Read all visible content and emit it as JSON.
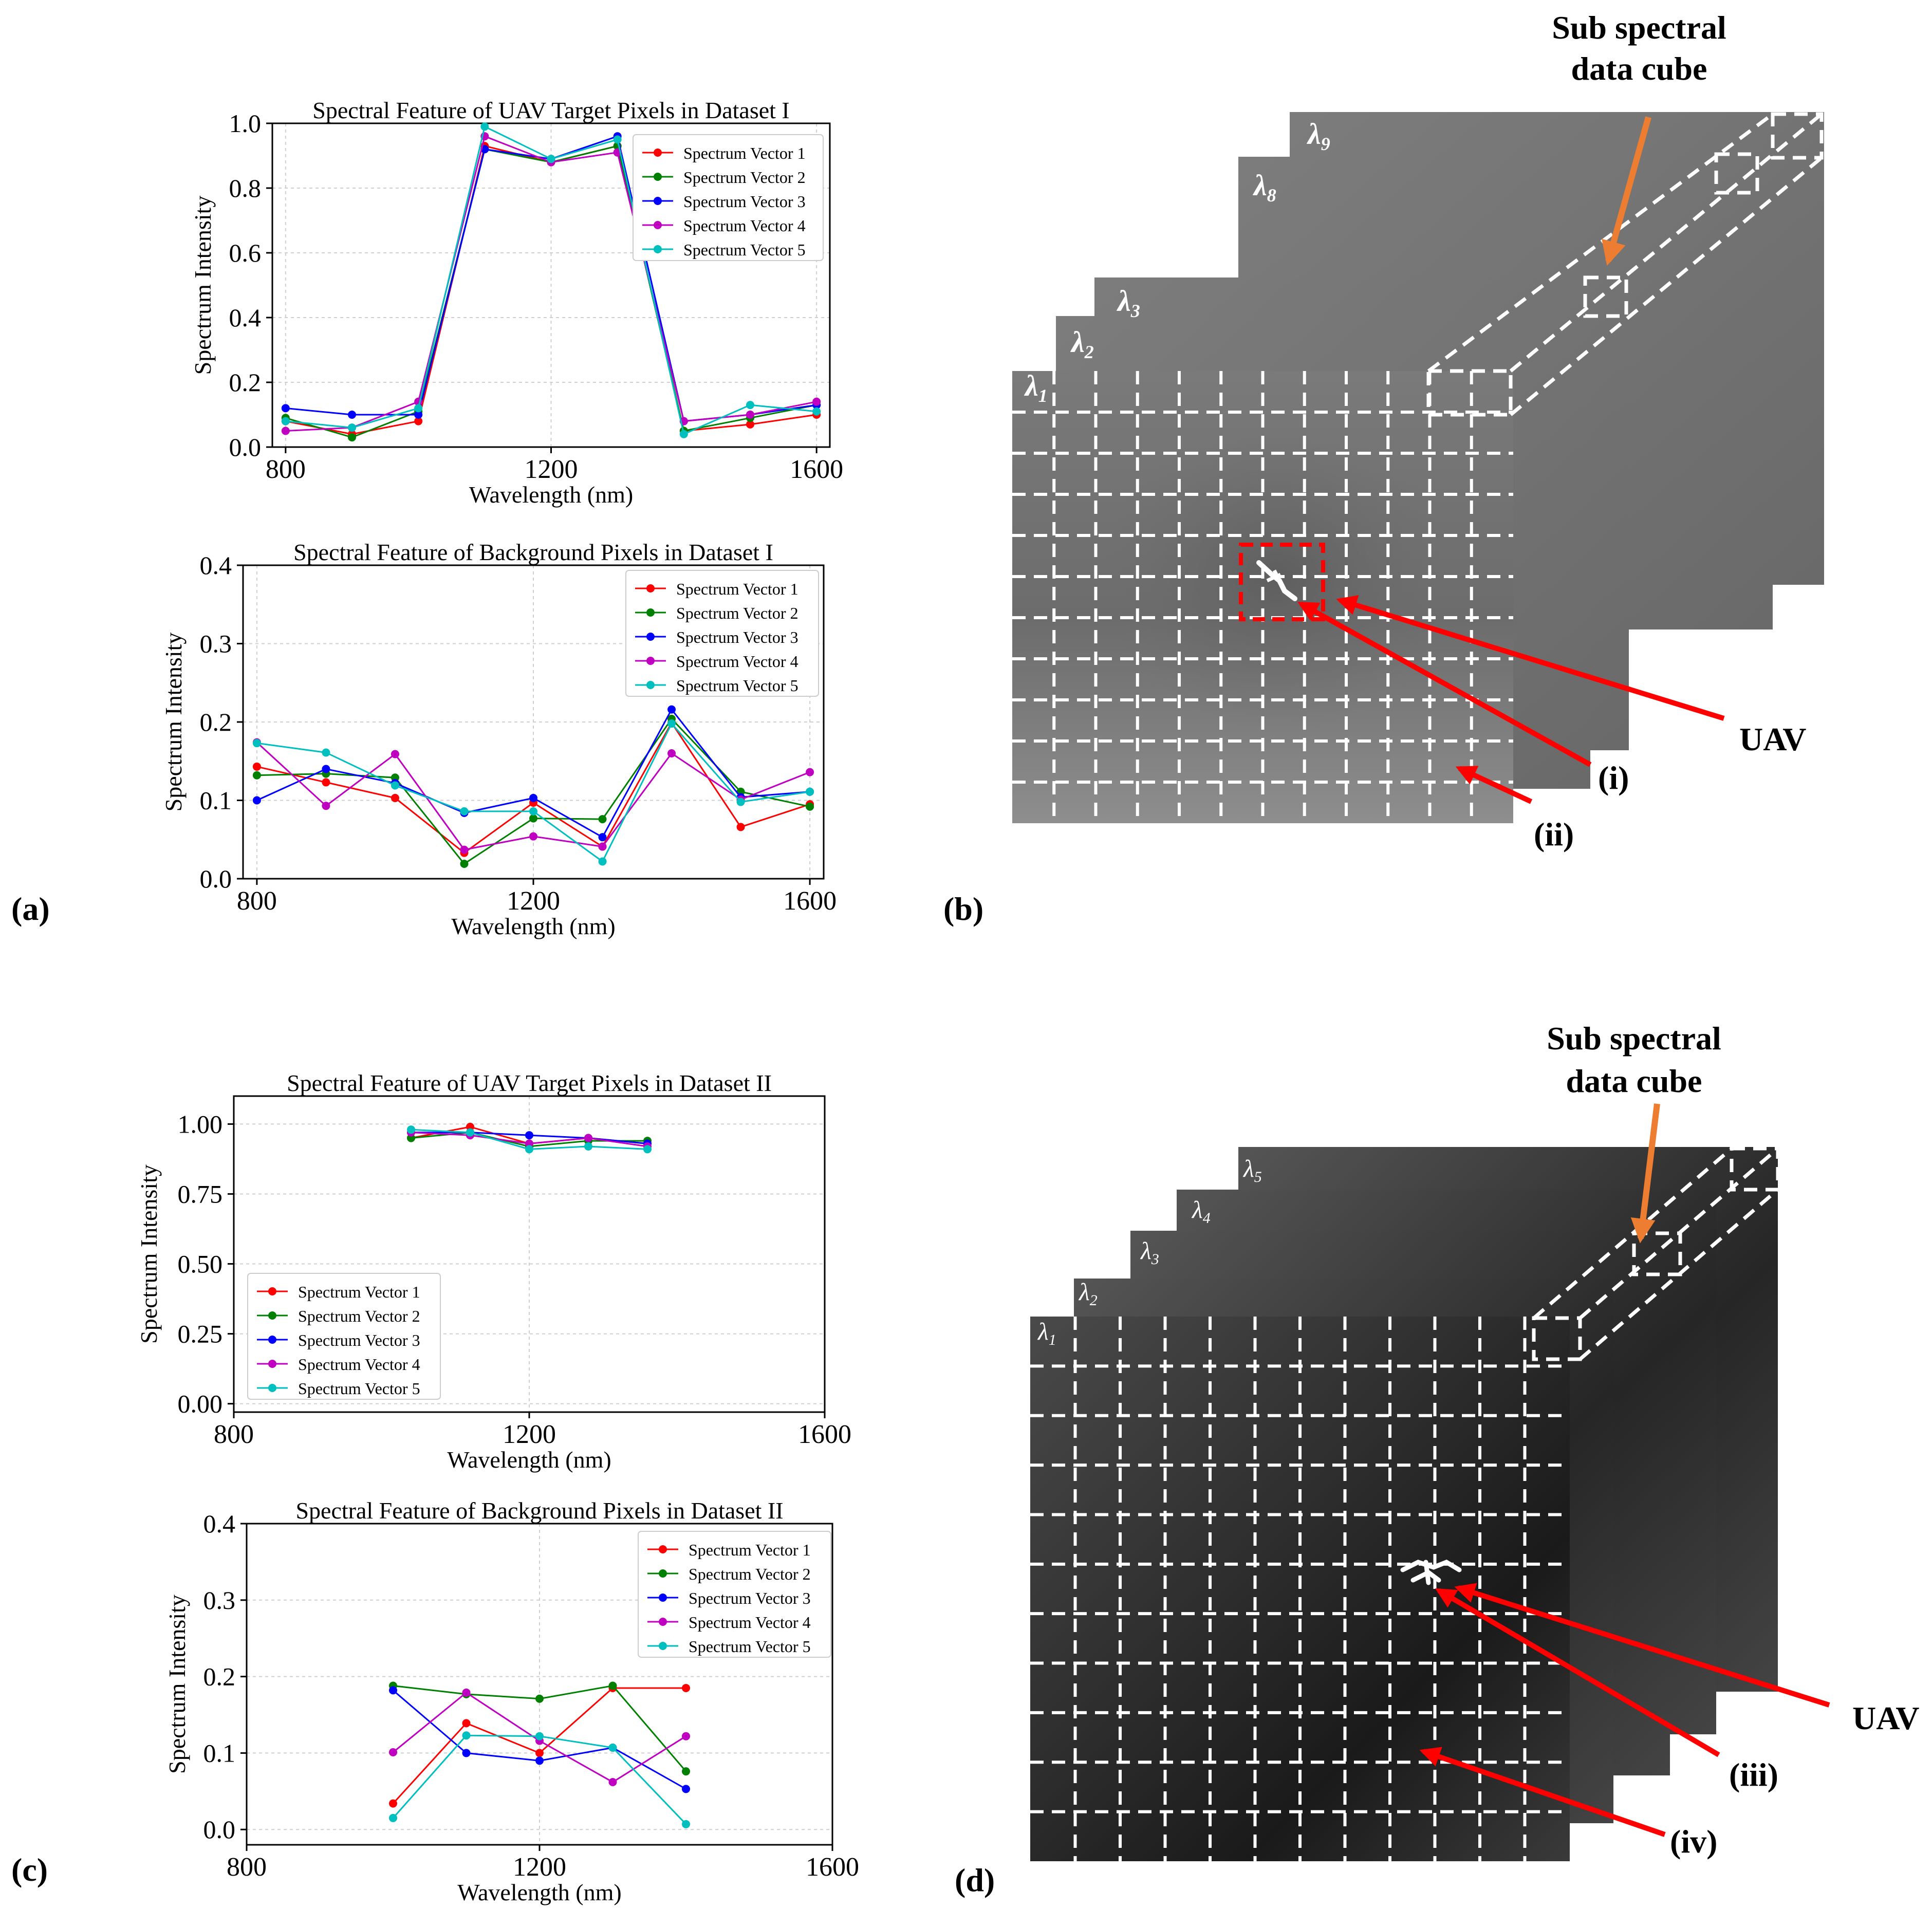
{
  "panel_labels": {
    "a": "(a)",
    "b": "(b)",
    "c": "(c)",
    "d": "(d)"
  },
  "series_colors": [
    "#ff0000",
    "#008000",
    "#0000ff",
    "#c000c0",
    "#00bfbf"
  ],
  "chart_data": [
    {
      "type": "line",
      "title": "Spectral Feature of UAV Target Pixels in Dataset I",
      "xlabel": "Wavelength (nm)",
      "ylabel": "Spectrum Intensity",
      "xlim": [
        780,
        1620
      ],
      "ylim": [
        0,
        1.0
      ],
      "xticks": [
        800,
        1200,
        1600
      ],
      "xtick_labels": [
        "800",
        "1200",
        "1600"
      ],
      "yticks": [
        0,
        0.2,
        0.4,
        0.6,
        0.8,
        1.0
      ],
      "ytick_labels": [
        "0.0",
        "0.2",
        "0.4",
        "0.6",
        "0.8",
        "1.0"
      ],
      "grid": true,
      "legend_position": "upper right",
      "x": [
        800,
        900,
        1000,
        1100,
        1200,
        1300,
        1400,
        1500,
        1600
      ],
      "series": [
        {
          "name": "Spectrum Vector 1",
          "values": [
            0.08,
            0.04,
            0.08,
            0.93,
            0.88,
            0.93,
            0.05,
            0.07,
            0.1
          ]
        },
        {
          "name": "Spectrum Vector 2",
          "values": [
            0.09,
            0.03,
            0.11,
            0.92,
            0.88,
            0.93,
            0.05,
            0.09,
            0.13
          ]
        },
        {
          "name": "Spectrum Vector 3",
          "values": [
            0.12,
            0.1,
            0.1,
            0.92,
            0.89,
            0.96,
            0.08,
            0.1,
            0.13
          ]
        },
        {
          "name": "Spectrum Vector 4",
          "values": [
            0.05,
            0.06,
            0.14,
            0.96,
            0.88,
            0.91,
            0.08,
            0.1,
            0.14
          ]
        },
        {
          "name": "Spectrum Vector 5",
          "values": [
            0.08,
            0.06,
            0.12,
            0.99,
            0.89,
            0.95,
            0.04,
            0.13,
            0.11
          ]
        }
      ]
    },
    {
      "type": "line",
      "title": "Spectral Feature of Background Pixels in Dataset I",
      "xlabel": "Wavelength (nm)",
      "ylabel": "Spectrum Intensity",
      "xlim": [
        780,
        1620
      ],
      "ylim": [
        0,
        0.4
      ],
      "xticks": [
        800,
        1200,
        1600
      ],
      "xtick_labels": [
        "800",
        "1200",
        "1600"
      ],
      "yticks": [
        0,
        0.1,
        0.2,
        0.3,
        0.4
      ],
      "ytick_labels": [
        "0.0",
        "0.1",
        "0.2",
        "0.3",
        "0.4"
      ],
      "grid": true,
      "legend_position": "upper right",
      "x": [
        800,
        900,
        1000,
        1100,
        1200,
        1300,
        1400,
        1500,
        1600
      ],
      "series": [
        {
          "name": "Spectrum Vector 1",
          "values": [
            0.143,
            0.123,
            0.103,
            0.033,
            0.097,
            0.041,
            0.199,
            0.066,
            0.095
          ]
        },
        {
          "name": "Spectrum Vector 2",
          "values": [
            0.132,
            0.134,
            0.129,
            0.019,
            0.077,
            0.076,
            0.204,
            0.111,
            0.092
          ]
        },
        {
          "name": "Spectrum Vector 3",
          "values": [
            0.1,
            0.14,
            0.122,
            0.084,
            0.103,
            0.053,
            0.216,
            0.104,
            0.111
          ]
        },
        {
          "name": "Spectrum Vector 4",
          "values": [
            0.174,
            0.093,
            0.159,
            0.037,
            0.054,
            0.041,
            0.16,
            0.101,
            0.136
          ]
        },
        {
          "name": "Spectrum Vector 5",
          "values": [
            0.173,
            0.161,
            0.119,
            0.086,
            0.086,
            0.022,
            0.198,
            0.098,
            0.111
          ]
        }
      ]
    },
    {
      "type": "line",
      "title": "Spectral Feature of UAV Target Pixels in Dataset II",
      "xlabel": "Wavelength (nm)",
      "ylabel": "Spectrum Intensity",
      "xlim": [
        800,
        1600
      ],
      "ylim": [
        -0.03,
        1.1
      ],
      "xticks": [
        800,
        1200,
        1600
      ],
      "xtick_labels": [
        "800",
        "1200",
        "1600"
      ],
      "yticks": [
        0,
        0.25,
        0.5,
        0.75,
        1.0
      ],
      "ytick_labels": [
        "0.00",
        "0.25",
        "0.50",
        "0.75",
        "1.00"
      ],
      "grid": true,
      "legend_position": "lower left",
      "x": [
        1040,
        1120,
        1200,
        1280,
        1360
      ],
      "series": [
        {
          "name": "Spectrum Vector 1",
          "values": [
            0.95,
            0.99,
            0.93,
            0.95,
            0.93
          ]
        },
        {
          "name": "Spectrum Vector 2",
          "values": [
            0.95,
            0.97,
            0.92,
            0.94,
            0.94
          ]
        },
        {
          "name": "Spectrum Vector 3",
          "values": [
            0.97,
            0.97,
            0.96,
            0.95,
            0.93
          ]
        },
        {
          "name": "Spectrum Vector 4",
          "values": [
            0.97,
            0.96,
            0.93,
            0.95,
            0.92
          ]
        },
        {
          "name": "Spectrum Vector 5",
          "values": [
            0.98,
            0.97,
            0.91,
            0.92,
            0.91
          ]
        }
      ]
    },
    {
      "type": "line",
      "title": "Spectral Feature of Background Pixels in Dataset II",
      "xlabel": "Wavelength (nm)",
      "ylabel": "Spectrum Intensity",
      "xlim": [
        800,
        1600
      ],
      "ylim": [
        -0.02,
        0.4
      ],
      "xticks": [
        800,
        1200,
        1600
      ],
      "xtick_labels": [
        "800",
        "1200",
        "1600"
      ],
      "yticks": [
        0,
        0.1,
        0.2,
        0.3,
        0.4
      ],
      "ytick_labels": [
        "0.0",
        "0.1",
        "0.2",
        "0.3",
        "0.4"
      ],
      "grid": true,
      "legend_position": "upper right",
      "x": [
        1000,
        1100,
        1200,
        1300,
        1400
      ],
      "series": [
        {
          "name": "Spectrum Vector 1",
          "values": [
            0.034,
            0.139,
            0.1,
            0.185,
            0.185
          ]
        },
        {
          "name": "Spectrum Vector 2",
          "values": [
            0.188,
            0.177,
            0.171,
            0.188,
            0.076
          ]
        },
        {
          "name": "Spectrum Vector 3",
          "values": [
            0.182,
            0.1,
            0.09,
            0.107,
            0.053
          ]
        },
        {
          "name": "Spectrum Vector 4",
          "values": [
            0.101,
            0.179,
            0.116,
            0.062,
            0.122
          ]
        },
        {
          "name": "Spectrum Vector 5",
          "values": [
            0.015,
            0.123,
            0.122,
            0.107,
            0.007
          ]
        }
      ]
    }
  ],
  "diagram_b": {
    "band_labels": [
      {
        "main": "λ",
        "sub": "1"
      },
      {
        "main": "λ",
        "sub": "2"
      },
      {
        "main": "λ",
        "sub": "3"
      },
      {
        "main": "λ",
        "sub": "8"
      },
      {
        "main": "λ",
        "sub": "9"
      }
    ],
    "sub_cube_label_line1": "Sub spectral",
    "sub_cube_label_line2": "data cube",
    "uav_label": "UAV",
    "callout_i": "(i)",
    "callout_ii": "(ii)"
  },
  "diagram_d": {
    "band_labels": [
      {
        "main": "λ",
        "sub": "1"
      },
      {
        "main": "λ",
        "sub": "2"
      },
      {
        "main": "λ",
        "sub": "3"
      },
      {
        "main": "λ",
        "sub": "4"
      },
      {
        "main": "λ",
        "sub": "5"
      }
    ],
    "sub_cube_label_line1": "Sub spectral",
    "sub_cube_label_line2": "data cube",
    "uav_label": "UAV",
    "callout_iii": "(iii)",
    "callout_iv": "(iv)"
  }
}
